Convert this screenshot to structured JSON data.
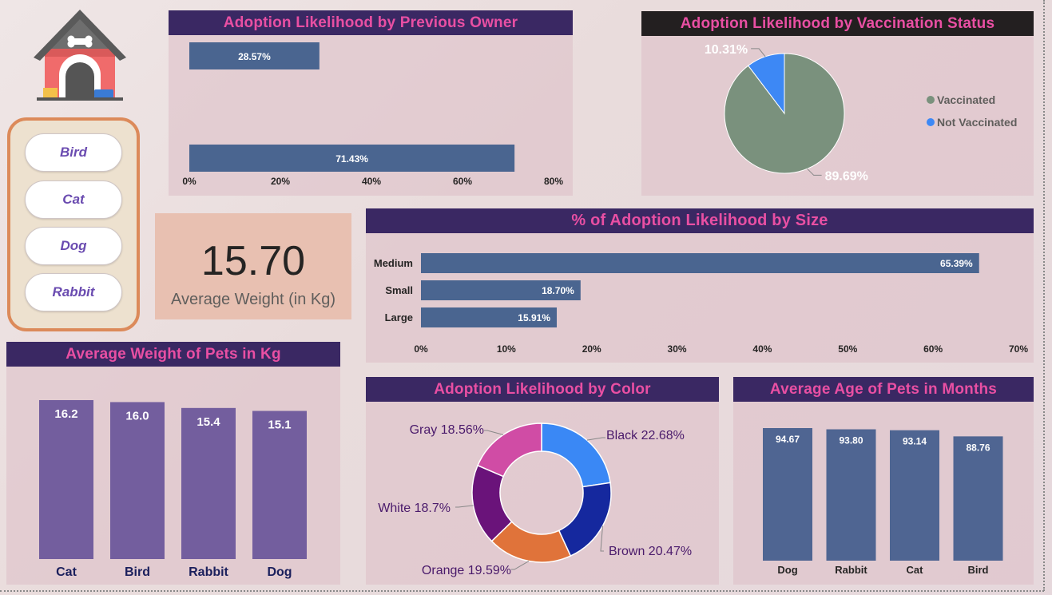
{
  "slicer": {
    "items": [
      "Bird",
      "Cat",
      "Dog",
      "Rabbit"
    ]
  },
  "kpi": {
    "value": "15.70",
    "label": "Average Weight (in Kg)"
  },
  "panels": {
    "previous_owner": "Adoption Likelihood by Previous Owner",
    "vaccination": "Adoption Likelihood by Vaccination Status",
    "size": "% of Adoption Likelihood by Size",
    "weight": "Average Weight of Pets in Kg",
    "color": "Adoption Likelihood by Color",
    "age": "Average Age of Pets in Months"
  },
  "icons": {
    "logo": "dog-house-icon"
  },
  "chart_data": [
    {
      "id": "previous_owner",
      "type": "bar",
      "orientation": "horizontal",
      "values": [
        28.57,
        71.43
      ],
      "data_labels": [
        "28.57%",
        "71.43%"
      ],
      "ticks": [
        "0%",
        "20%",
        "40%",
        "60%",
        "80%"
      ],
      "xlim": [
        0,
        80
      ],
      "color": "#4a6590"
    },
    {
      "id": "vaccination",
      "type": "pie",
      "slices": [
        {
          "name": "Vaccinated",
          "value": 89.69,
          "label": "89.69%",
          "color": "#7a917d"
        },
        {
          "name": "Not Vaccinated",
          "value": 10.31,
          "label": "10.31%",
          "color": "#3d88f5"
        }
      ],
      "legend": "right"
    },
    {
      "id": "size",
      "type": "bar",
      "orientation": "horizontal",
      "categories": [
        "Medium",
        "Small",
        "Large"
      ],
      "values": [
        65.39,
        18.7,
        15.91
      ],
      "data_labels": [
        "65.39%",
        "18.70%",
        "15.91%"
      ],
      "ticks": [
        "0%",
        "10%",
        "20%",
        "30%",
        "40%",
        "50%",
        "60%",
        "70%"
      ],
      "xlim": [
        0,
        70
      ],
      "color": "#4a6590"
    },
    {
      "id": "weight",
      "type": "bar",
      "categories": [
        "Cat",
        "Bird",
        "Rabbit",
        "Dog"
      ],
      "values": [
        16.2,
        16.0,
        15.4,
        15.1
      ],
      "data_labels": [
        "16.2",
        "16.0",
        "15.4",
        "15.1"
      ],
      "color": "#735e9e"
    },
    {
      "id": "color",
      "type": "pie",
      "donut": true,
      "slices": [
        {
          "name": "Black",
          "value": 22.68,
          "label": "Black 22.68%",
          "color": "#3a88f5"
        },
        {
          "name": "Brown",
          "value": 20.47,
          "label": "Brown 20.47%",
          "color": "#15289e"
        },
        {
          "name": "Orange",
          "value": 19.59,
          "label": "Orange 19.59%",
          "color": "#e0733a"
        },
        {
          "name": "White",
          "value": 18.7,
          "label": "White 18.7%",
          "color": "#6a137a"
        },
        {
          "name": "Gray",
          "value": 18.56,
          "label": "Gray 18.56%",
          "color": "#d04ca5"
        }
      ]
    },
    {
      "id": "age",
      "type": "bar",
      "categories": [
        "Dog",
        "Rabbit",
        "Cat",
        "Bird"
      ],
      "values": [
        94.67,
        93.8,
        93.14,
        88.76
      ],
      "data_labels": [
        "94.67",
        "93.80",
        "93.14",
        "88.76"
      ],
      "color": "#4f6592"
    }
  ]
}
